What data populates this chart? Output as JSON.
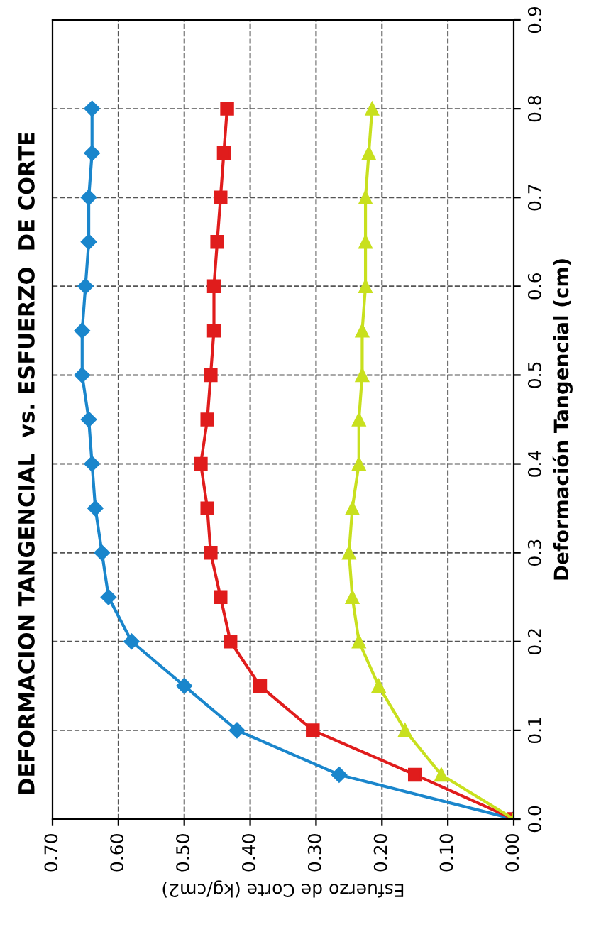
{
  "chart_data": {
    "type": "line",
    "title": "DEFORMACION TANGENCIAL  vs. ESFUERZO  DE CORTE",
    "xlabel": "Esfuerzo de Corte (kg/cm2)",
    "ylabel": "Deformación Tangencial (cm)",
    "series": [
      {
        "color": "#1a86cc",
        "marker": "diamond",
        "x": [
          0.0,
          0.265,
          0.42,
          0.5,
          0.58,
          0.615,
          0.625,
          0.635,
          0.64,
          0.645,
          0.655,
          0.655,
          0.65,
          0.645,
          0.645,
          0.64,
          0.64
        ],
        "values": [
          0.0,
          0.05,
          0.1,
          0.15,
          0.2,
          0.25,
          0.3,
          0.35,
          0.4,
          0.45,
          0.5,
          0.55,
          0.6,
          0.65,
          0.7,
          0.75,
          0.8
        ]
      },
      {
        "color": "#e01c1c",
        "marker": "square",
        "x": [
          0.0,
          0.15,
          0.305,
          0.385,
          0.43,
          0.445,
          0.46,
          0.465,
          0.475,
          0.465,
          0.46,
          0.455,
          0.455,
          0.45,
          0.445,
          0.44,
          0.435
        ],
        "values": [
          0.0,
          0.05,
          0.1,
          0.15,
          0.2,
          0.25,
          0.3,
          0.35,
          0.4,
          0.45,
          0.5,
          0.55,
          0.6,
          0.65,
          0.7,
          0.75,
          0.8
        ]
      },
      {
        "color": "#c8e01e",
        "marker": "triangle",
        "x": [
          0.0,
          0.11,
          0.165,
          0.205,
          0.235,
          0.245,
          0.25,
          0.245,
          0.235,
          0.235,
          0.23,
          0.23,
          0.225,
          0.225,
          0.225,
          0.22,
          0.215
        ],
        "values": [
          0.0,
          0.05,
          0.1,
          0.15,
          0.2,
          0.25,
          0.3,
          0.35,
          0.4,
          0.45,
          0.5,
          0.55,
          0.6,
          0.65,
          0.7,
          0.75,
          0.8
        ]
      }
    ],
    "xlim": [
      0.7,
      0.0
    ],
    "xticks": [
      {
        "value": 0.7,
        "label": "0.70"
      },
      {
        "value": 0.6,
        "label": "0.60"
      },
      {
        "value": 0.5,
        "label": "0.50"
      },
      {
        "value": 0.4,
        "label": "0.40"
      },
      {
        "value": 0.3,
        "label": "0.30"
      },
      {
        "value": 0.2,
        "label": "0.20"
      },
      {
        "value": 0.1,
        "label": "0.10"
      },
      {
        "value": 0.0,
        "label": "0.00"
      }
    ],
    "ylim": [
      0.0,
      0.9
    ],
    "yticks": [
      {
        "value": 0.0,
        "label": "0.0"
      },
      {
        "value": 0.1,
        "label": "0.1"
      },
      {
        "value": 0.2,
        "label": "0.2"
      },
      {
        "value": 0.3,
        "label": "0.3"
      },
      {
        "value": 0.4,
        "label": "0.4"
      },
      {
        "value": 0.5,
        "label": "0.5"
      },
      {
        "value": 0.6,
        "label": "0.6"
      },
      {
        "value": 0.7,
        "label": "0.7"
      },
      {
        "value": 0.8,
        "label": "0.8"
      },
      {
        "value": 0.9,
        "label": "0.9"
      }
    ],
    "grid": true
  }
}
